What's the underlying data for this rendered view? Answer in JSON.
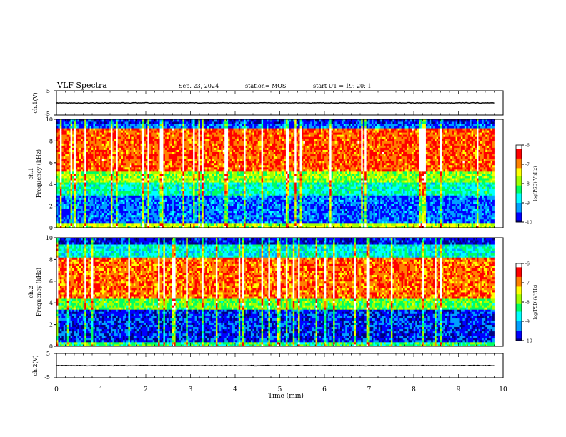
{
  "header": {
    "title": "VLF Spectra",
    "date": "Sep. 23, 2024",
    "station": "station= MOS",
    "start_ut": "start  UT  =   19: 20: 1"
  },
  "chart_data": [
    {
      "id": "ch1-voltage",
      "type": "line",
      "ylabel": "ch.1(V)",
      "ylim": [
        -5,
        5
      ],
      "yticks": [
        "5",
        "-5"
      ],
      "xlim": [
        0,
        10
      ],
      "description_value": 0
    },
    {
      "id": "ch1-spectrogram",
      "type": "heatmap",
      "ylabel_line1": "ch.1",
      "ylabel_line2": "Frequency (kHz)",
      "ylim": [
        0,
        10
      ],
      "yticks": [
        "0",
        "2",
        "4",
        "6",
        "8",
        "10"
      ],
      "xlim": [
        0,
        10
      ],
      "data_end_min": 9.8,
      "colorbar": {
        "label": "log(PSD)(V²/Hz)",
        "ticks": [
          "-6",
          "-7",
          "-8",
          "-9",
          "-10"
        ],
        "range": [
          -10,
          -6
        ]
      }
    },
    {
      "id": "ch2-spectrogram",
      "type": "heatmap",
      "ylabel_line1": "ch.2",
      "ylabel_line2": "Frequency (kHz)",
      "ylim": [
        0,
        10
      ],
      "yticks": [
        "0",
        "2",
        "4",
        "6",
        "8",
        "10"
      ],
      "xlim": [
        0,
        10
      ],
      "data_end_min": 9.8,
      "colorbar": {
        "label": "log(PSD)(V²/Hz)",
        "ticks": [
          "-6",
          "-7",
          "-8",
          "-9",
          "-10"
        ],
        "range": [
          -10,
          -6
        ]
      }
    },
    {
      "id": "ch2-voltage",
      "type": "line",
      "ylabel": "ch.2(V)",
      "ylim": [
        -5,
        5
      ],
      "yticks": [
        "5",
        "-5"
      ],
      "xlim": [
        0,
        10
      ]
    }
  ],
  "xaxis": {
    "label": "Time  (min)",
    "ticks": [
      "0",
      "1",
      "2",
      "3",
      "4",
      "5",
      "6",
      "7",
      "8",
      "9",
      "10"
    ]
  },
  "colors": {
    "axis": "#000000",
    "colormap": [
      "#00007f",
      "#0000ff",
      "#00a0ff",
      "#00ffff",
      "#00ff60",
      "#a0ff00",
      "#ffff00",
      "#ff8000",
      "#ff0000",
      "#ffffff"
    ]
  }
}
